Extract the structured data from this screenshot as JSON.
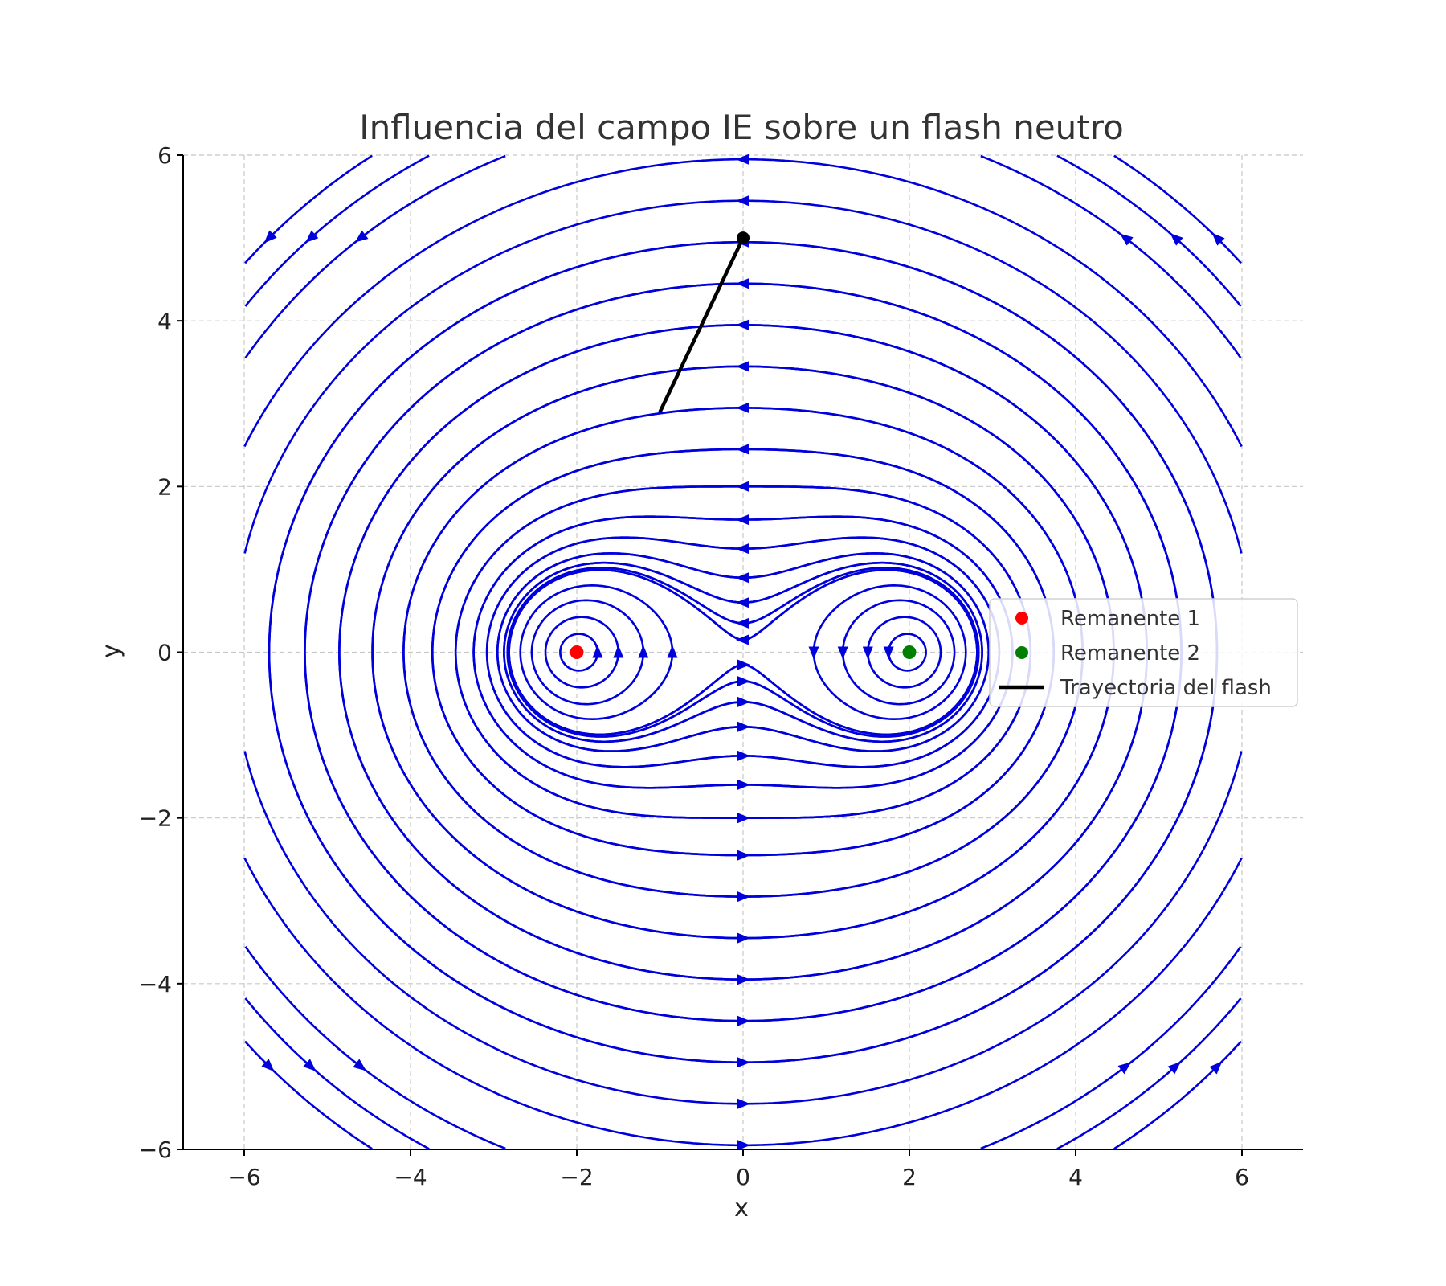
{
  "chart_data": {
    "type": "streamplot",
    "title": "Influencia del campo IE sobre un flash neutro",
    "xlabel": "x",
    "ylabel": "y",
    "xlim": [
      -6,
      6
    ],
    "ylim": [
      -6,
      6
    ],
    "xticks": [
      -6,
      -4,
      -2,
      0,
      2,
      4,
      6
    ],
    "yticks": [
      -6,
      -4,
      -2,
      0,
      2,
      4,
      6
    ],
    "xtick_labels": [
      "−6",
      "−4",
      "−2",
      "0",
      "2",
      "4",
      "6"
    ],
    "ytick_labels": [
      "−6",
      "−4",
      "−2",
      "0",
      "2",
      "4",
      "6"
    ],
    "grid": true,
    "legend_position": "right",
    "stream_color": "#0000dd",
    "field_sources": [
      [
        -2,
        0
      ],
      [
        2,
        0
      ]
    ],
    "series": [
      {
        "name": "Remanente 1",
        "kind": "point",
        "color": "#ff0000",
        "x": [
          -2
        ],
        "y": [
          0
        ]
      },
      {
        "name": "Remanente 2",
        "kind": "point",
        "color": "#008000",
        "x": [
          2
        ],
        "y": [
          0
        ]
      },
      {
        "name": "Trayectoria del flash",
        "kind": "line",
        "color": "#000000",
        "x": [
          -1.0,
          0.0
        ],
        "y": [
          2.9,
          5.0
        ]
      }
    ]
  }
}
